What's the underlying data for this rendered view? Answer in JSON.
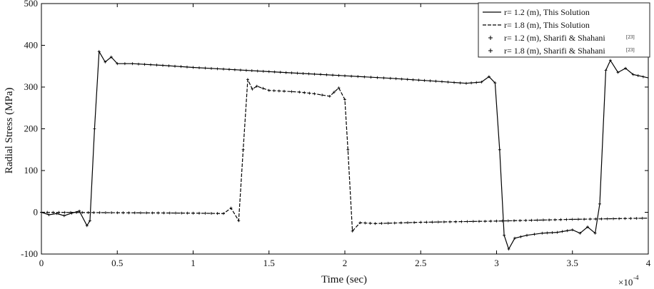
{
  "chart_data": {
    "type": "line",
    "xlabel": "Time (sec)",
    "ylabel": "Radial Stress (MPa)",
    "x_exponent_label": "×10",
    "x_exponent_power": "-4",
    "xlim": [
      0,
      4
    ],
    "ylim": [
      -100,
      500
    ],
    "x_ticks": [
      0,
      0.5,
      1,
      1.5,
      2,
      2.5,
      3,
      3.5,
      4
    ],
    "x_tick_labels": [
      "0",
      "0.5",
      "1",
      "1.5",
      "2",
      "2.5",
      "3",
      "3.5",
      "4"
    ],
    "y_ticks": [
      -100,
      0,
      100,
      200,
      300,
      400,
      500
    ],
    "y_tick_labels": [
      "-100",
      "0",
      "100",
      "200",
      "300",
      "400",
      "500"
    ],
    "grid": false,
    "legend_position": "top-right",
    "legend": [
      {
        "label": "r= 1.2 (m), This Solution",
        "ref": "",
        "style": "solid"
      },
      {
        "label": "r= 1.8 (m), This Solution",
        "ref": "",
        "style": "dashed"
      },
      {
        "label": "r= 1.2 (m), Sharifi & Shahani",
        "ref": "[23]",
        "style": "dash-marker"
      },
      {
        "label": "r= 1.8 (m), Sharifi & Shahani",
        "ref": "[23]",
        "style": "marker"
      }
    ],
    "series": [
      {
        "name": "r= 1.2 (m), This Solution",
        "style": "solid",
        "x": [
          0,
          0.05,
          0.1,
          0.15,
          0.2,
          0.25,
          0.3,
          0.32,
          0.35,
          0.38,
          0.42,
          0.46,
          0.5,
          0.6,
          0.8,
          1.0,
          1.2,
          1.5,
          1.8,
          2.0,
          2.3,
          2.6,
          2.8,
          2.9,
          2.95,
          2.99,
          3.02,
          3.05,
          3.08,
          3.12,
          3.2,
          3.3,
          3.4,
          3.5,
          3.55,
          3.6,
          3.65,
          3.68,
          3.72,
          3.75,
          3.8,
          3.85,
          3.9,
          4.0
        ],
        "y": [
          0,
          -6,
          -3,
          -8,
          -2,
          3,
          -32,
          -20,
          200,
          385,
          360,
          372,
          356,
          356,
          352,
          347,
          343,
          337,
          331,
          327,
          321,
          314,
          309,
          312,
          325,
          310,
          150,
          -55,
          -88,
          -62,
          -55,
          -50,
          -48,
          -42,
          -50,
          -35,
          -50,
          20,
          340,
          364,
          335,
          345,
          330,
          322
        ]
      },
      {
        "name": "r= 1.8 (m), This Solution",
        "style": "dashed",
        "x": [
          0,
          0.5,
          1.0,
          1.2,
          1.25,
          1.3,
          1.33,
          1.36,
          1.39,
          1.42,
          1.5,
          1.6,
          1.7,
          1.8,
          1.9,
          1.96,
          2.0,
          2.02,
          2.05,
          2.1,
          2.2,
          2.5,
          3.0,
          3.5,
          4.0
        ],
        "y": [
          0,
          -1,
          -2,
          -3,
          10,
          -20,
          150,
          318,
          295,
          302,
          292,
          290,
          288,
          284,
          278,
          298,
          270,
          150,
          -45,
          -25,
          -27,
          -24,
          -21,
          -17,
          -14
        ]
      }
    ]
  }
}
